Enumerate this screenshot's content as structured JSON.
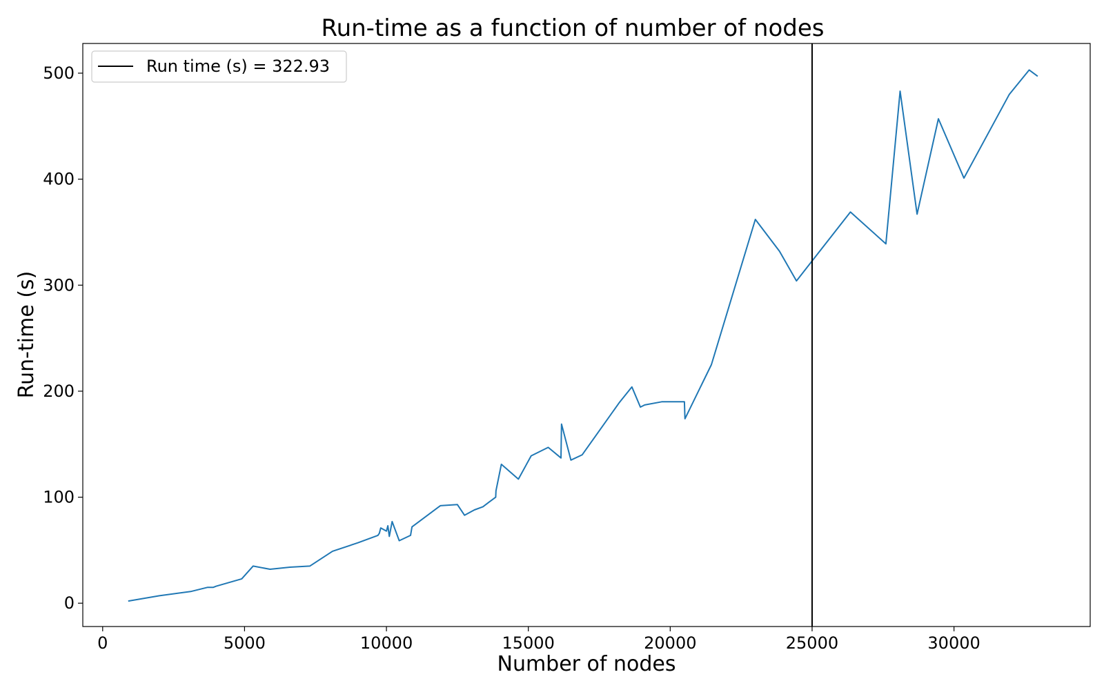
{
  "chart_data": {
    "type": "line",
    "title": "Run-time as a function of number of nodes",
    "xlabel": "Number of nodes",
    "ylabel": "Run-time (s)",
    "xlim": [
      -700,
      34800
    ],
    "ylim": [
      -22,
      528
    ],
    "xticks": [
      0,
      5000,
      10000,
      15000,
      20000,
      25000,
      30000
    ],
    "yticks": [
      0,
      100,
      200,
      300,
      400,
      500
    ],
    "grid": false,
    "legend_position": "upper-left",
    "series": [
      {
        "color": "#1f77b4",
        "x": [
          900,
          2000,
          3100,
          3700,
          3900,
          4000,
          4900,
          5300,
          5900,
          6600,
          7300,
          8100,
          9000,
          9700,
          9750,
          9800,
          10000,
          10050,
          10100,
          10200,
          10450,
          10850,
          10900,
          11900,
          12500,
          12750,
          13100,
          13400,
          13600,
          13850,
          13860,
          14050,
          14650,
          15100,
          15700,
          16150,
          16170,
          16500,
          16900,
          18200,
          18650,
          18950,
          19100,
          19700,
          20500,
          20520,
          21450,
          23000,
          23850,
          24450,
          25000,
          26350,
          27600,
          28100,
          28700,
          29450,
          30350,
          31950,
          32650,
          32950
        ],
        "y": [
          2,
          7,
          11,
          15,
          15,
          16,
          23,
          35,
          32,
          34,
          35,
          49,
          57,
          64,
          66,
          71,
          68,
          73,
          63,
          77,
          59,
          64,
          72,
          92,
          93,
          83,
          88,
          91,
          95,
          100,
          106,
          131,
          117,
          139,
          147,
          137,
          169,
          135,
          140,
          189,
          204,
          185,
          187,
          190,
          190,
          174,
          225,
          362,
          332,
          304,
          322.93,
          369,
          339,
          483,
          367,
          457,
          401,
          480,
          503,
          497
        ]
      },
      {
        "name": "Run time (s) = 322.93",
        "color": "#000000",
        "vline_x": 25000
      }
    ]
  }
}
